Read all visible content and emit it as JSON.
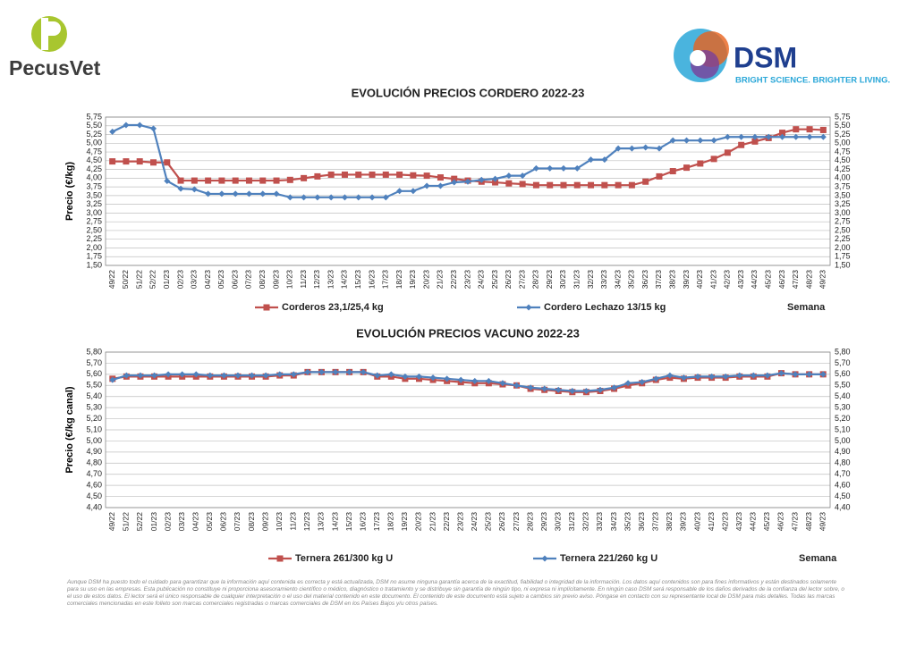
{
  "brand": {
    "left": "PecusVet",
    "right": "DSM",
    "tagline": "BRIGHT SCIENCE. BRIGHTER LIVING."
  },
  "disclaimer": "Aunque DSM ha puesto todo el cuidado para garantizar que la información aquí contenida es correcta y está actualizada, DSM no asume ninguna garantía acerca de la exactitud, fiabilidad o integridad de la información. Los datos aquí contenidos son para fines informativos y están destinados solamente para su uso en las empresas. Esta publicación no constituye ni proporciona asesoramiento científico o médico, diagnóstico o tratamiento y se distribuye sin garantía de ningún tipo, ni expresa ni implícitamente. En ningún caso DSM será responsable de los daños derivados de la confianza del lector sobre, o el uso de estos datos. El lector será el único responsable de cualquier interpretación o el uso del material contenido en este documento. El contenido de este documento está sujeto a cambios sin previo aviso. Póngase en contacto con su representante local de DSM para más detalles. Todas las marcas comerciales mencionadas en este folleto son marcas comerciales registradas o marcas comerciales de DSM en los Países Bajos y/u otros países.",
  "chart_data": [
    {
      "type": "line",
      "title": "EVOLUCIÓN PRECIOS CORDERO 2022-23",
      "y_label": "Precio (€/kg)",
      "x_label": "Semana",
      "categories": [
        "49/22",
        "50/22",
        "51/22",
        "52/22",
        "01/23",
        "02/23",
        "03/23",
        "04/23",
        "05/23",
        "06/23",
        "07/23",
        "08/23",
        "09/23",
        "10/23",
        "11/23",
        "12/23",
        "13/23",
        "14/23",
        "15/23",
        "16/23",
        "17/23",
        "18/23",
        "19/23",
        "20/23",
        "21/23",
        "22/23",
        "23/23",
        "24/23",
        "25/23",
        "26/23",
        "27/23",
        "28/23",
        "29/23",
        "30/23",
        "31/23",
        "32/23",
        "33/23",
        "34/23",
        "35/23",
        "36/23",
        "37/23",
        "38/23",
        "39/23",
        "40/23",
        "41/23",
        "42/23",
        "43/23",
        "44/23",
        "45/23",
        "46/23",
        "47/23",
        "48/23",
        "49/23"
      ],
      "series": [
        {
          "name": "Corderos 23,1/25,4 kg",
          "color": "#c0504d",
          "marker": "square",
          "values": [
            4.48,
            4.48,
            4.48,
            4.45,
            4.45,
            3.93,
            3.93,
            3.93,
            3.93,
            3.93,
            3.93,
            3.93,
            3.93,
            3.95,
            4.0,
            4.05,
            4.1,
            4.1,
            4.1,
            4.1,
            4.1,
            4.1,
            4.08,
            4.07,
            4.02,
            3.98,
            3.93,
            3.9,
            3.88,
            3.85,
            3.83,
            3.8,
            3.8,
            3.8,
            3.8,
            3.8,
            3.8,
            3.8,
            3.8,
            3.9,
            4.05,
            4.2,
            4.3,
            4.42,
            4.55,
            4.73,
            4.95,
            5.05,
            5.15,
            5.3,
            5.4,
            5.4,
            5.38
          ]
        },
        {
          "name": "Cordero Lechazo 13/15 kg",
          "color": "#4f81bd",
          "marker": "diamond",
          "values": [
            5.33,
            5.52,
            5.52,
            5.42,
            3.92,
            3.7,
            3.68,
            3.55,
            3.55,
            3.55,
            3.55,
            3.55,
            3.55,
            3.45,
            3.45,
            3.45,
            3.45,
            3.45,
            3.45,
            3.45,
            3.45,
            3.63,
            3.63,
            3.78,
            3.78,
            3.88,
            3.9,
            3.95,
            3.98,
            4.07,
            4.07,
            4.28,
            4.28,
            4.28,
            4.28,
            4.53,
            4.53,
            4.85,
            4.85,
            4.88,
            4.85,
            5.08,
            5.08,
            5.08,
            5.08,
            5.18,
            5.18,
            5.18,
            5.18,
            5.18,
            5.18,
            5.18,
            5.18
          ]
        }
      ],
      "ylim": [
        1.5,
        5.75
      ],
      "yticks": [
        {
          "value": 1.5,
          "label": "1,50"
        },
        {
          "value": 1.75,
          "label": "1,75"
        },
        {
          "value": 2,
          "label": "2,00"
        },
        {
          "value": 2.25,
          "label": "2,25"
        },
        {
          "value": 2.5,
          "label": "2,50"
        },
        {
          "value": 2.75,
          "label": "2,75"
        },
        {
          "value": 3,
          "label": "3,00"
        },
        {
          "value": 3.25,
          "label": "3,25"
        },
        {
          "value": 3.5,
          "label": "3,50"
        },
        {
          "value": 3.75,
          "label": "3,75"
        },
        {
          "value": 4,
          "label": "4,00"
        },
        {
          "value": 4.25,
          "label": "4,25"
        },
        {
          "value": 4.5,
          "label": "4,50"
        },
        {
          "value": 4.75,
          "label": "4,75"
        },
        {
          "value": 5,
          "label": "5,00"
        },
        {
          "value": 5.25,
          "label": "5,25"
        },
        {
          "value": 5.5,
          "label": "5,50"
        },
        {
          "value": 5.75,
          "label": "5,75"
        }
      ],
      "grid": true
    },
    {
      "type": "line",
      "title": "EVOLUCIÓN PRECIOS VACUNO 2022-23",
      "y_label": "Precio (€/kg canal)",
      "x_label": "Semana",
      "categories": [
        "49/22",
        "51/22",
        "52/22",
        "01/23",
        "02/23",
        "03/23",
        "04/23",
        "05/23",
        "06/23",
        "07/23",
        "08/23",
        "09/23",
        "10/23",
        "11/23",
        "12/23",
        "13/23",
        "14/23",
        "15/23",
        "16/23",
        "17/23",
        "18/23",
        "19/23",
        "20/23",
        "21/23",
        "22/23",
        "23/23",
        "24/23",
        "25/23",
        "26/23",
        "27/23",
        "28/23",
        "29/23",
        "30/23",
        "31/23",
        "32/23",
        "33/23",
        "34/23",
        "35/23",
        "36/23",
        "37/23",
        "38/23",
        "39/23",
        "40/23",
        "41/23",
        "42/23",
        "43/23",
        "44/23",
        "45/23",
        "46/23",
        "47/23",
        "48/23",
        "49/23"
      ],
      "series": [
        {
          "name": "Ternera 261/300 kg U",
          "color": "#c0504d",
          "marker": "square",
          "values": [
            5.56,
            5.58,
            5.58,
            5.58,
            5.58,
            5.58,
            5.58,
            5.58,
            5.58,
            5.58,
            5.58,
            5.58,
            5.59,
            5.59,
            5.62,
            5.62,
            5.62,
            5.62,
            5.62,
            5.58,
            5.58,
            5.56,
            5.56,
            5.55,
            5.54,
            5.53,
            5.52,
            5.52,
            5.51,
            5.5,
            5.47,
            5.46,
            5.45,
            5.44,
            5.44,
            5.45,
            5.47,
            5.5,
            5.52,
            5.55,
            5.57,
            5.56,
            5.57,
            5.57,
            5.57,
            5.58,
            5.58,
            5.58,
            5.61,
            5.6,
            5.6,
            5.6
          ]
        },
        {
          "name": "Ternera 221/260 kg U",
          "color": "#4f81bd",
          "marker": "diamond",
          "values": [
            5.55,
            5.59,
            5.59,
            5.59,
            5.6,
            5.6,
            5.6,
            5.59,
            5.59,
            5.59,
            5.59,
            5.59,
            5.6,
            5.6,
            5.62,
            5.62,
            5.62,
            5.62,
            5.62,
            5.59,
            5.6,
            5.58,
            5.58,
            5.57,
            5.56,
            5.55,
            5.54,
            5.54,
            5.52,
            5.5,
            5.48,
            5.47,
            5.46,
            5.45,
            5.45,
            5.46,
            5.48,
            5.52,
            5.53,
            5.56,
            5.59,
            5.57,
            5.58,
            5.58,
            5.58,
            5.59,
            5.59,
            5.59,
            5.61,
            5.6,
            5.6,
            5.6
          ]
        }
      ],
      "ylim": [
        4.4,
        5.8
      ],
      "yticks": [
        {
          "value": 4.4,
          "label": "4,40"
        },
        {
          "value": 4.5,
          "label": "4,50"
        },
        {
          "value": 4.6,
          "label": "4,60"
        },
        {
          "value": 4.7,
          "label": "4,70"
        },
        {
          "value": 4.8,
          "label": "4,80"
        },
        {
          "value": 4.9,
          "label": "4,90"
        },
        {
          "value": 5,
          "label": "5,00"
        },
        {
          "value": 5.1,
          "label": "5,10"
        },
        {
          "value": 5.2,
          "label": "5,20"
        },
        {
          "value": 5.3,
          "label": "5,30"
        },
        {
          "value": 5.4,
          "label": "5,40"
        },
        {
          "value": 5.5,
          "label": "5,50"
        },
        {
          "value": 5.6,
          "label": "5,60"
        },
        {
          "value": 5.7,
          "label": "5,70"
        },
        {
          "value": 5.8,
          "label": "5,80"
        }
      ],
      "grid": true
    }
  ]
}
